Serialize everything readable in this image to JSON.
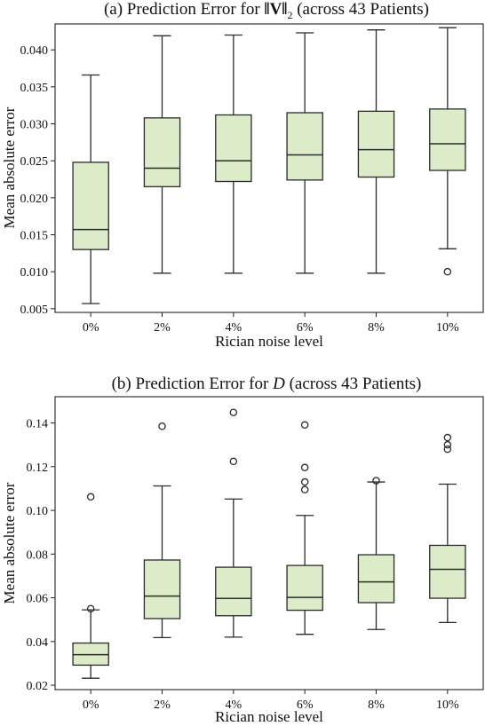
{
  "colors": {
    "box_fill": "#dcebc8",
    "line": "#2b2b2b"
  },
  "chart_data": [
    {
      "type": "box",
      "title_prefix": "(a) Prediction Error for ",
      "title_symbol": "‖V‖",
      "title_sub": "2",
      "title_suffix": " (across 43 Patients)",
      "xlabel": "Rician noise level",
      "ylabel": "Mean absolute error",
      "categories": [
        "0%",
        "2%",
        "4%",
        "6%",
        "8%",
        "10%"
      ],
      "ylim": [
        0.0045,
        0.0435
      ],
      "yticks": [
        "0.005",
        "0.010",
        "0.015",
        "0.020",
        "0.025",
        "0.030",
        "0.035",
        "0.040"
      ],
      "boxes": [
        {
          "whislo": 0.0057,
          "q1": 0.013,
          "med": 0.0157,
          "q3": 0.0248,
          "whishi": 0.0366,
          "fliers": []
        },
        {
          "whislo": 0.0098,
          "q1": 0.0215,
          "med": 0.024,
          "q3": 0.0308,
          "whishi": 0.0419,
          "fliers": []
        },
        {
          "whislo": 0.0098,
          "q1": 0.0222,
          "med": 0.025,
          "q3": 0.0312,
          "whishi": 0.042,
          "fliers": []
        },
        {
          "whislo": 0.0098,
          "q1": 0.0224,
          "med": 0.0258,
          "q3": 0.0315,
          "whishi": 0.0423,
          "fliers": []
        },
        {
          "whislo": 0.0098,
          "q1": 0.0228,
          "med": 0.0265,
          "q3": 0.0317,
          "whishi": 0.0427,
          "fliers": []
        },
        {
          "whislo": 0.0131,
          "q1": 0.0237,
          "med": 0.0273,
          "q3": 0.032,
          "whishi": 0.043,
          "fliers": [
            0.01
          ]
        }
      ]
    },
    {
      "type": "box",
      "title_prefix": "(b) Prediction Error for ",
      "title_symbol": "D",
      "title_sub": "",
      "title_suffix": " (across 43 Patients)",
      "xlabel": "Rician noise level",
      "ylabel": "Mean absolute error",
      "categories": [
        "0%",
        "2%",
        "4%",
        "6%",
        "8%",
        "10%"
      ],
      "ylim": [
        0.018,
        0.152
      ],
      "yticks": [
        "0.02",
        "0.04",
        "0.06",
        "0.08",
        "0.10",
        "0.12",
        "0.14"
      ],
      "boxes": [
        {
          "whislo": 0.0232,
          "q1": 0.0292,
          "med": 0.034,
          "q3": 0.0393,
          "whishi": 0.0545,
          "fliers": [
            0.055,
            0.1062
          ]
        },
        {
          "whislo": 0.0418,
          "q1": 0.0505,
          "med": 0.0608,
          "q3": 0.0773,
          "whishi": 0.1112,
          "fliers": [
            0.1385
          ]
        },
        {
          "whislo": 0.042,
          "q1": 0.0518,
          "med": 0.0597,
          "q3": 0.074,
          "whishi": 0.1052,
          "fliers": [
            0.1224,
            0.1448
          ]
        },
        {
          "whislo": 0.0433,
          "q1": 0.0543,
          "med": 0.0602,
          "q3": 0.0748,
          "whishi": 0.0977,
          "fliers": [
            0.1095,
            0.113,
            0.1196,
            0.1391
          ]
        },
        {
          "whislo": 0.0455,
          "q1": 0.0578,
          "med": 0.0673,
          "q3": 0.0797,
          "whishi": 0.113,
          "fliers": [
            0.1136
          ]
        },
        {
          "whislo": 0.0487,
          "q1": 0.0598,
          "med": 0.073,
          "q3": 0.084,
          "whishi": 0.112,
          "fliers": [
            0.128,
            0.13,
            0.1333
          ]
        }
      ]
    }
  ]
}
